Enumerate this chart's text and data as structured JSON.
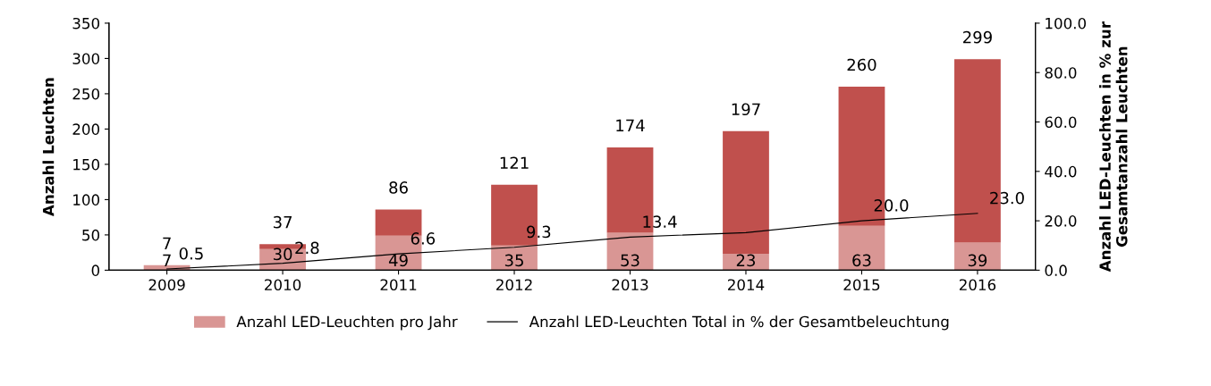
{
  "chart_data": {
    "type": "bar",
    "stacked": true,
    "categories": [
      "2009",
      "2010",
      "2011",
      "2012",
      "2013",
      "2014",
      "2015",
      "2016"
    ],
    "series": [
      {
        "name": "Anzahl LED-Leuchten pro Jahr",
        "color": "#d99694",
        "values": [
          7,
          30,
          49,
          35,
          53,
          23,
          63,
          39
        ],
        "value_labels": [
          "7",
          "30",
          "49",
          "35",
          "53",
          "23",
          "63",
          "39"
        ]
      },
      {
        "color": "#c0504d",
        "values": [
          0,
          7,
          37,
          86,
          121,
          174,
          197,
          260
        ]
      },
      {
        "name": "Anzahl LED-Leuchten Total in % der Gesamtbeleuchtung",
        "type": "line",
        "axis": "y2",
        "color": "#000000",
        "values": [
          0.5,
          2.8,
          6.6,
          9.3,
          13.4,
          15.2,
          20.0,
          23.0
        ],
        "value_labels": [
          "0.5",
          "2.8",
          "6.6",
          "9.3",
          "13.4",
          null,
          "20.0",
          "23.0"
        ]
      }
    ],
    "totals": [
      "7",
      "37",
      "86",
      "121",
      "174",
      "197",
      "260",
      "299"
    ],
    "ylabel": "Anzahl Leuchten",
    "y2label": "Anzahl LED-Leuchten in % zur Gesamtanzahl Leuchten",
    "ylim": [
      0,
      350
    ],
    "yticks": [
      0,
      50,
      100,
      150,
      200,
      250,
      300,
      350
    ],
    "y2lim": [
      0,
      100
    ],
    "y2ticks": [
      {
        "value": 0,
        "label": "0.0"
      },
      {
        "value": 20,
        "label": "20.0"
      },
      {
        "value": 40,
        "label": "40.0"
      },
      {
        "value": 60,
        "label": "60.0"
      },
      {
        "value": 80,
        "label": "80.0"
      },
      {
        "value": 100,
        "label": "100.0"
      }
    ],
    "grid": false,
    "legend": "bottom",
    "marker": "none",
    "line_style": "solid"
  }
}
